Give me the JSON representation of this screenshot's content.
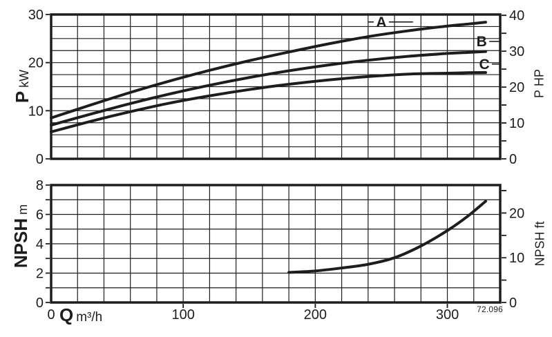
{
  "figure_code": "72.096",
  "colors": {
    "ink": "#1d1d1b",
    "background": "#ffffff"
  },
  "axes": {
    "top_left": {
      "symbol": "P",
      "unit": "kW"
    },
    "top_right": {
      "symbol": "P",
      "unit": "HP"
    },
    "bottom_left": {
      "symbol": "NPSH",
      "unit": "m"
    },
    "bottom_right": {
      "symbol": "NPSH",
      "unit": "ft"
    },
    "x": {
      "symbol": "Q",
      "unit": "m³/h"
    }
  },
  "chart_data": [
    {
      "type": "line",
      "title": "",
      "xlabel": "Q m³/h",
      "ylabel": "P kW",
      "ylabel_right": "P HP",
      "x_range": [
        0,
        340
      ],
      "grid_x_step": 20,
      "grid_on": true,
      "y_left": {
        "range": [
          0,
          30
        ],
        "tick_labels": [
          0,
          10,
          20,
          30
        ],
        "grid_step": 2.5,
        "tick_minor_step": null
      },
      "y_right": {
        "tick_labels": [
          0,
          10,
          20,
          30,
          40
        ],
        "tick_minor_step": 5,
        "max_shown": 40,
        "units_per_left_unit": 1.34102
      },
      "x_ticks": null,
      "series": [
        {
          "name": "A",
          "x": [
            0,
            30,
            60,
            90,
            120,
            150,
            180,
            210,
            240,
            270,
            300,
            315,
            329
          ],
          "y": [
            8.5,
            11.2,
            13.8,
            16.2,
            18.4,
            20.4,
            22.2,
            23.9,
            25.4,
            26.6,
            27.6,
            28.0,
            28.4
          ],
          "label_at": {
            "x": 250,
            "y": 28.45
          },
          "leader": {
            "from": 240,
            "to": 274
          }
        },
        {
          "name": "B",
          "x": [
            0,
            30,
            60,
            90,
            120,
            150,
            180,
            210,
            240,
            270,
            300,
            315,
            329
          ],
          "y": [
            7.0,
            9.3,
            11.5,
            13.5,
            15.3,
            16.9,
            18.3,
            19.5,
            20.5,
            21.3,
            21.9,
            22.1,
            22.3
          ],
          "label_at": {
            "x": 326,
            "y": 24.4
          },
          "leader": {
            "from": 330,
            "to": 340
          }
        },
        {
          "name": "C",
          "x": [
            0,
            30,
            60,
            90,
            120,
            150,
            180,
            210,
            240,
            270,
            300,
            315,
            329
          ],
          "y": [
            5.6,
            7.8,
            9.8,
            11.6,
            13.1,
            14.4,
            15.5,
            16.4,
            17.1,
            17.6,
            17.8,
            17.9,
            17.95
          ],
          "label_at": {
            "x": 328,
            "y": 19.7
          },
          "leader": {
            "from": 332,
            "to": 340
          }
        }
      ]
    },
    {
      "type": "line",
      "title": "",
      "xlabel": "Q m³/h",
      "ylabel": "NPSH m",
      "ylabel_right": "NPSH ft",
      "x_range": [
        0,
        340
      ],
      "grid_x_step": 20,
      "grid_on": true,
      "y_left": {
        "range": [
          0,
          8
        ],
        "tick_labels": [
          0,
          2,
          4,
          6,
          8
        ],
        "grid_step": 1,
        "tick_minor_step": 1
      },
      "y_right": {
        "tick_labels": [
          0,
          10,
          20
        ],
        "tick_minor_step": 5,
        "max_shown": 26,
        "units_per_left_unit": 3.28084
      },
      "x_ticks": [
        0,
        100,
        200,
        300
      ],
      "series": [
        {
          "name": "NPSH",
          "x": [
            180,
            200,
            220,
            240,
            260,
            280,
            300,
            315,
            329
          ],
          "y": [
            2.05,
            2.15,
            2.35,
            2.6,
            3.05,
            3.85,
            4.9,
            5.85,
            6.9
          ],
          "label_at": null,
          "leader": null
        }
      ]
    }
  ]
}
